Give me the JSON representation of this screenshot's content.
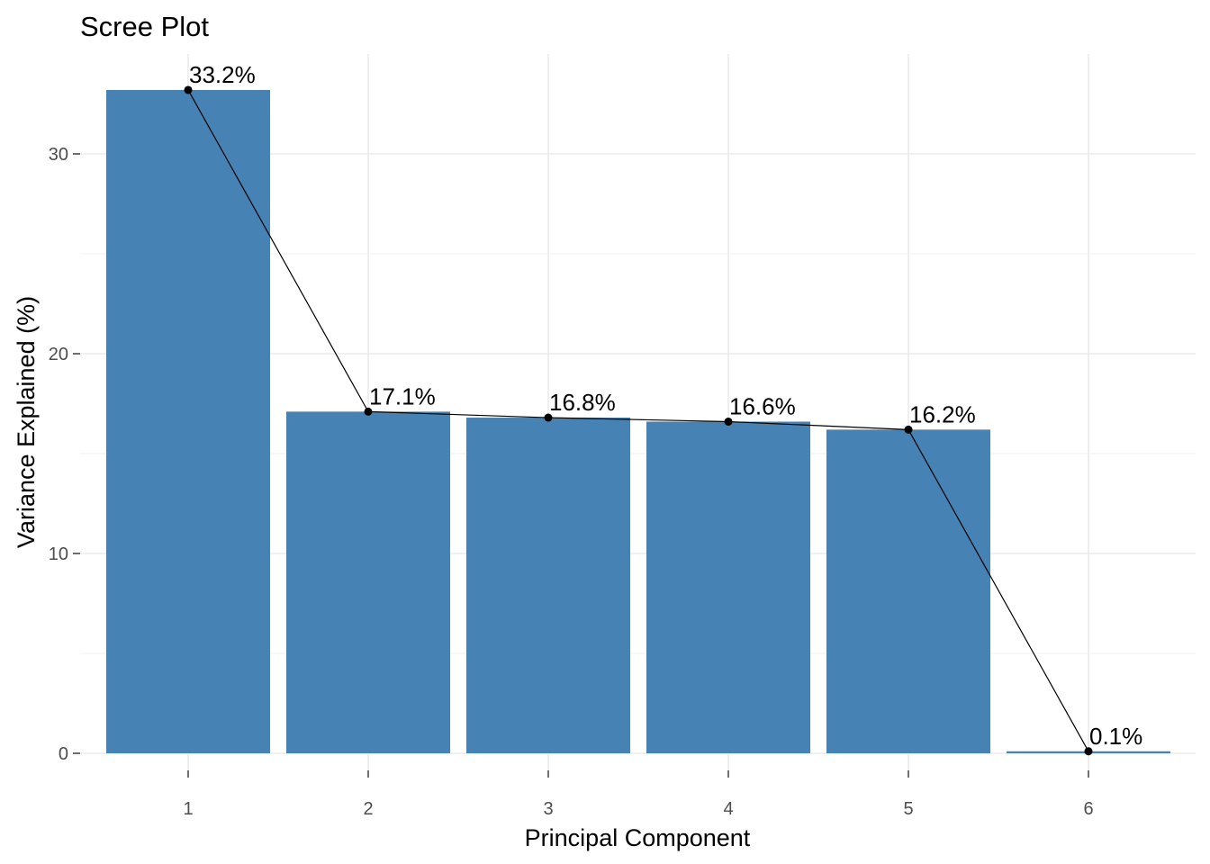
{
  "chart_data": {
    "type": "bar",
    "title": "Scree Plot",
    "xlabel": "Principal Component",
    "ylabel": "Variance Explained (%)",
    "categories": [
      "1",
      "2",
      "3",
      "4",
      "5",
      "6"
    ],
    "values": [
      33.2,
      17.1,
      16.8,
      16.6,
      16.2,
      0.1
    ],
    "data_labels": [
      "33.2%",
      "17.1%",
      "16.8%",
      "16.6%",
      "16.2%",
      "0.1%"
    ],
    "yticks": [
      0,
      10,
      20,
      30
    ],
    "y_tick_labels": [
      "0",
      "10",
      "20",
      "30"
    ],
    "ylim": [
      0,
      34.8
    ],
    "grid": true,
    "overlay": "line with points connecting bar tops",
    "bar_color": "#4682b4",
    "line_color": "#000000"
  }
}
